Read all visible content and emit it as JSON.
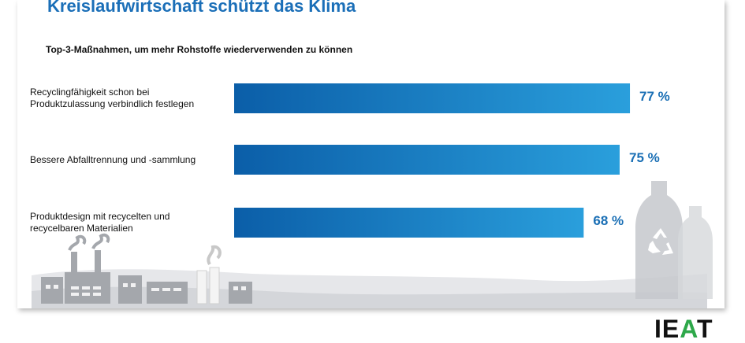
{
  "title": "Kreislaufwirtschaft schützt das Klima",
  "subtitle": "Top-3-Maßnahmen, um mehr Rohstoffe wiederverwenden zu können",
  "brand": {
    "text_main": "IE",
    "text_accent": "A",
    "text_end": "T"
  },
  "colors": {
    "bar_dark": "#0b5ea8",
    "bar_light": "#2a9fdc",
    "value_text": "#1a6fb5",
    "title": "#1b6fb8"
  },
  "icons": [
    "factory-icon",
    "recycling-icon",
    "bottle-icon"
  ],
  "chart_data": {
    "type": "bar",
    "orientation": "horizontal",
    "title": "Kreislaufwirtschaft schützt das Klima",
    "subtitle": "Top-3-Maßnahmen, um mehr Rohstoffe wiederverwenden zu können",
    "categories": [
      "Recyclingfähigkeit schon bei Produktzulassung verbindlich festlegen",
      "Bessere Abfalltrennung und -sammlung",
      "Produktdesign mit recycelten und recycelbaren Materialien"
    ],
    "category_lines": [
      [
        "Recyclingfähigkeit schon bei",
        "Produktzulassung verbindlich festlegen"
      ],
      [
        "Bessere Abfalltrennung und -sammlung"
      ],
      [
        "Produktdesign mit recycelten und",
        "recycelbaren Materialien"
      ]
    ],
    "values": [
      77,
      75,
      68
    ],
    "value_labels": [
      "77 %",
      "75 %",
      "68 %"
    ],
    "unit": "%",
    "xlim": [
      0,
      100
    ],
    "grid": false,
    "legend": "none"
  }
}
